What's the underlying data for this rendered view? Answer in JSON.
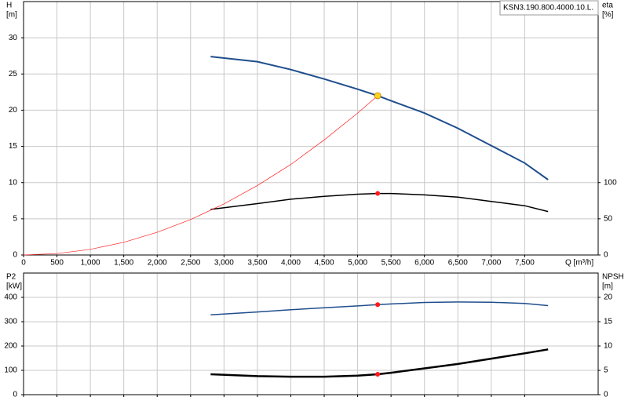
{
  "chart_data": [
    {
      "type": "line",
      "y_label": "H",
      "y_unit": "[m]",
      "y2_label": "eta",
      "y2_unit": "[%]",
      "x_label": "Q [m³/h]",
      "annotation": "KSN3.190.800.4000.10.L.",
      "x": [
        2800,
        3500,
        4000,
        4500,
        5000,
        5300,
        5500,
        6000,
        6500,
        7000,
        7500,
        7850
      ],
      "xlim": [
        0,
        8600
      ],
      "xticks": [
        0,
        500,
        {
          "value": 1000,
          "label": "1,000"
        },
        {
          "value": 1500,
          "label": "1,500"
        },
        {
          "value": 2000,
          "label": "2,000"
        },
        {
          "value": 2500,
          "label": "2,500"
        },
        {
          "value": 3000,
          "label": "3,000"
        },
        {
          "value": 3500,
          "label": "3,500"
        },
        {
          "value": 4000,
          "label": "4,000"
        },
        {
          "value": 4500,
          "label": "4,500"
        },
        {
          "value": 5000,
          "label": "5,000"
        },
        {
          "value": 5500,
          "label": "5,500"
        },
        {
          "value": 6000,
          "label": "6,000"
        },
        {
          "value": 6500,
          "label": "6,500"
        },
        {
          "value": 7000,
          "label": "7,000"
        },
        {
          "value": 7500,
          "label": "7,500"
        }
      ],
      "ylim": [
        0,
        35
      ],
      "yticks": [
        0,
        5,
        10,
        15,
        20,
        25,
        30
      ],
      "y2lim": [
        0,
        350
      ],
      "y2ticks": [
        0,
        50,
        100
      ],
      "grid": true,
      "series": [
        {
          "color": "#1f4e8c",
          "values": [
            27.4,
            26.7,
            25.6,
            24.3,
            22.9,
            22.0,
            21.3,
            19.6,
            17.5,
            15.1,
            12.7,
            10.4
          ]
        },
        {
          "color": "#000000",
          "axis": "y2",
          "values": [
            63,
            71,
            77,
            81,
            84,
            85,
            85,
            83,
            80,
            74,
            68,
            60
          ]
        },
        {
          "color": "#ff2020",
          "x": [
            0,
            500,
            1000,
            1500,
            2000,
            2500,
            3000,
            3500,
            4000,
            4500,
            5000,
            5300
          ],
          "values": [
            0,
            0.2,
            0.78,
            1.76,
            3.13,
            4.9,
            7.05,
            9.6,
            12.5,
            15.9,
            19.6,
            22.0
          ]
        }
      ],
      "points": [
        {
          "x": 5300,
          "y": 22.0,
          "color": "#ffd21f"
        },
        {
          "x": 5300,
          "y": 85,
          "axis": "y2",
          "color": "#ff1a1a"
        }
      ]
    },
    {
      "type": "line",
      "y_label": "P2",
      "y_unit": "[kW]",
      "y2_label": "NPSH",
      "y2_unit": "[m]",
      "x": [
        2800,
        3500,
        4000,
        4500,
        5000,
        5300,
        5500,
        6000,
        6500,
        7000,
        7500,
        7850
      ],
      "xlim": [
        0,
        8600
      ],
      "xticks": [
        0,
        500,
        1000,
        1500,
        2000,
        2500,
        3000,
        3500,
        4000,
        4500,
        5000,
        5500,
        6000,
        6500,
        7000,
        7500
      ],
      "ylim": [
        0,
        500
      ],
      "yticks": [
        0,
        100,
        200,
        300,
        400
      ],
      "y2lim": [
        0,
        25
      ],
      "y2ticks": [
        0,
        5,
        10,
        15,
        20
      ],
      "grid": true,
      "series": [
        {
          "color": "#1f4e8c",
          "values": [
            328,
            340,
            349,
            357,
            365,
            370,
            373,
            379,
            381,
            380,
            375,
            366
          ]
        },
        {
          "color": "#000000",
          "axis": "y2",
          "values": [
            4.2,
            3.8,
            3.7,
            3.7,
            3.9,
            4.2,
            4.5,
            5.4,
            6.3,
            7.4,
            8.5,
            9.3
          ]
        }
      ],
      "points": [
        {
          "x": 5300,
          "y": 370,
          "color": "#ff1a1a"
        },
        {
          "x": 5300,
          "y": 4.2,
          "axis": "y2",
          "color": "#ff1a1a"
        }
      ]
    }
  ]
}
